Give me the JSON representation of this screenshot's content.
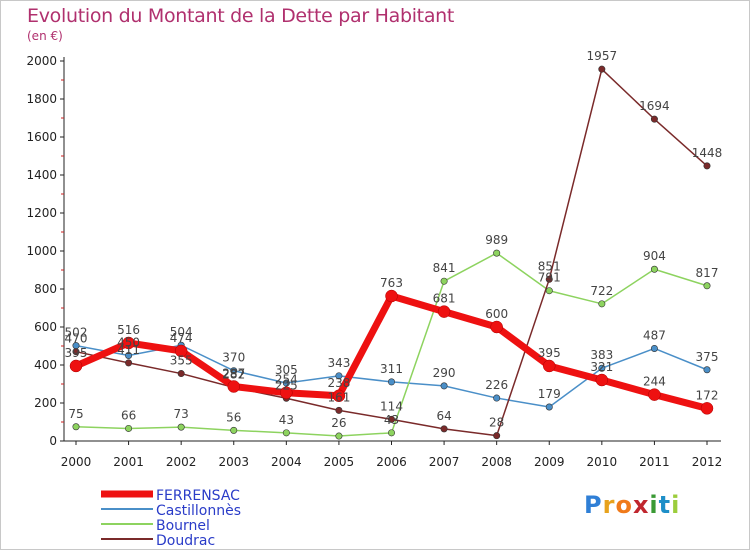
{
  "title": "Evolution du Montant de la Dette par Habitant",
  "subtitle": "(en €)",
  "logo": {
    "letters": [
      "P",
      "r",
      "o",
      "x",
      "i",
      "t",
      "i"
    ],
    "colors": [
      "#2f7fd6",
      "#e7a21d",
      "#f07a1a",
      "#c0262e",
      "#3a9a35",
      "#1e8fc8",
      "#9ccd3c"
    ]
  },
  "chart_data": {
    "type": "line",
    "x": [
      "2000",
      "2001",
      "2002",
      "2003",
      "2004",
      "2005",
      "2006",
      "2007",
      "2008",
      "2009",
      "2010",
      "2011",
      "2012"
    ],
    "ylim": [
      0,
      2000
    ],
    "yticks": [
      "0",
      "200",
      "400",
      "600",
      "800",
      "1000",
      "1200",
      "1400",
      "1600",
      "1800",
      "2000"
    ],
    "grid": false,
    "legend_position": "bottom-left",
    "series": [
      {
        "name": "Castillonnès",
        "color": "#4a8fc8",
        "width": 1.5,
        "values": [
          502,
          450,
          504,
          370,
          305,
          343,
          311,
          290,
          226,
          179,
          383,
          487,
          375
        ],
        "labels": [
          "502",
          "450",
          "504",
          "370",
          "305",
          "343",
          "311",
          "290",
          "226",
          "179",
          "383",
          "487",
          "375"
        ]
      },
      {
        "name": "Bournel",
        "color": "#8dd35f",
        "width": 1.5,
        "values": [
          75,
          66,
          73,
          56,
          43,
          26,
          43,
          841,
          989,
          791,
          722,
          904,
          817
        ],
        "labels": [
          "75",
          "66",
          "73",
          "56",
          "43",
          "26",
          "43",
          "841",
          "989",
          "791",
          "722",
          "904",
          "817"
        ]
      },
      {
        "name": "Doudrac",
        "color": "#7a2a2a",
        "width": 1.5,
        "values": [
          470,
          411,
          355,
          282,
          225,
          161,
          114,
          64,
          28,
          851,
          1957,
          1694,
          1448
        ],
        "labels": [
          "470",
          "411",
          "355",
          "282",
          "225",
          "161",
          "114",
          "64",
          "28",
          "851",
          "1957",
          "1694",
          "1448"
        ]
      },
      {
        "name": "FERRENSAC",
        "color": "#ee1111",
        "width": 7,
        "values": [
          395,
          516,
          474,
          287,
          254,
          238,
          763,
          681,
          600,
          395,
          321,
          244,
          172
        ],
        "labels": [
          "395",
          "516",
          "474",
          "287",
          "254",
          "238",
          "763",
          "681",
          "600",
          "395",
          "321",
          "244",
          "172"
        ]
      }
    ],
    "legend": [
      {
        "name": "FERRENSAC",
        "color": "#ee1111",
        "width": 7
      },
      {
        "name": "Castillonnès",
        "color": "#4a8fc8",
        "width": 2
      },
      {
        "name": "Bournel",
        "color": "#8dd35f",
        "width": 2
      },
      {
        "name": "Doudrac",
        "color": "#7a2a2a",
        "width": 2
      }
    ]
  }
}
